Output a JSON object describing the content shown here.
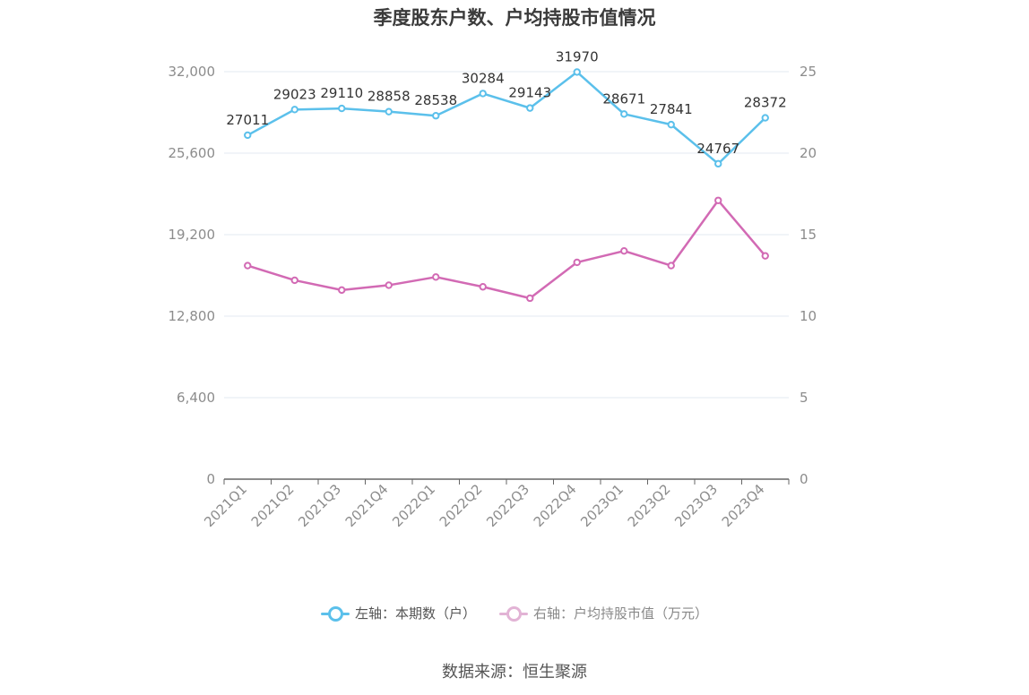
{
  "chart_data": {
    "type": "line",
    "title": "季度股东户数、户均持股市值情况",
    "categories": [
      "2021Q1",
      "2021Q2",
      "2021Q3",
      "2021Q4",
      "2022Q1",
      "2022Q2",
      "2022Q3",
      "2022Q4",
      "2023Q1",
      "2023Q2",
      "2023Q3",
      "2023Q4"
    ],
    "left_axis": {
      "ticks": [
        "0",
        "6,400",
        "12,800",
        "19,200",
        "25,600",
        "32,000"
      ],
      "ylim": [
        0,
        32000
      ]
    },
    "right_axis": {
      "ticks": [
        "0",
        "5",
        "10",
        "15",
        "20",
        "25"
      ],
      "ylim": [
        0,
        25
      ]
    },
    "series": [
      {
        "name": "左轴：本期数（户）",
        "axis": "left",
        "color": "#5bc0eb",
        "values": [
          27011,
          29023,
          29110,
          28858,
          28538,
          30284,
          29143,
          31970,
          28671,
          27841,
          24767,
          28372
        ],
        "labels": [
          "27011",
          "29023",
          "29110",
          "28858",
          "28538",
          "30284",
          "29143",
          "31970",
          "28671",
          "27841",
          "24767",
          "28372"
        ]
      },
      {
        "name": "右轴：户均持股市值（万元）",
        "axis": "right",
        "color": "#d26ab4",
        "values": [
          13.1,
          12.2,
          11.6,
          11.9,
          12.4,
          11.8,
          11.1,
          13.3,
          14.0,
          13.1,
          17.1,
          13.7
        ]
      }
    ],
    "grid": true,
    "legend_position": "bottom"
  },
  "source_text": "数据来源：恒生聚源"
}
